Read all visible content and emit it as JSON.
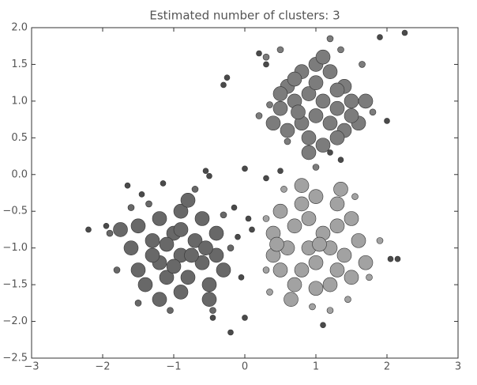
{
  "chart_data": {
    "type": "scatter",
    "title": "Estimated number of clusters: 3",
    "xlim": [
      -3,
      3
    ],
    "ylim": [
      -2.5,
      2.0
    ],
    "xticks": [
      {
        "value": -3,
        "label": "−3"
      },
      {
        "value": -2,
        "label": "−2"
      },
      {
        "value": -1,
        "label": "−1"
      },
      0,
      1,
      2,
      3
    ],
    "yticks": [
      {
        "value": -2.5,
        "label": "−2.5"
      },
      {
        "value": -2.0,
        "label": "−2.0"
      },
      {
        "value": -1.5,
        "label": "−1.5"
      },
      {
        "value": -1.0,
        "label": "−1.0"
      },
      {
        "value": -0.5,
        "label": "−0.5"
      },
      {
        "value": 0.0,
        "label": "0.0"
      },
      0.5,
      {
        "value": 1.0,
        "label": "1.0"
      },
      1.5,
      {
        "value": 2.0,
        "label": "2.0"
      }
    ],
    "grid": false,
    "series": [
      {
        "color": "#7c7c7c",
        "marker_size": 9,
        "x": [
          0.6,
          0.8,
          1.0,
          1.2,
          1.4,
          0.5,
          0.7,
          0.9,
          1.1,
          1.3,
          1.5,
          1.7,
          0.6,
          0.8,
          1.0,
          1.2,
          1.4,
          1.6,
          0.9,
          1.1,
          1.3,
          0.4,
          0.7,
          1.1,
          0.9,
          1.5,
          0.5,
          1.0,
          1.3,
          0.75
        ],
        "values": [
          1.2,
          1.4,
          1.5,
          1.4,
          1.2,
          0.9,
          1.0,
          1.1,
          1.0,
          0.9,
          1.0,
          1.0,
          0.6,
          0.7,
          0.8,
          0.7,
          0.6,
          0.7,
          0.5,
          0.4,
          0.5,
          0.7,
          1.3,
          1.6,
          0.3,
          0.8,
          1.1,
          1.25,
          1.15,
          0.85
        ]
      },
      {
        "color": "#7c7c7c",
        "marker_size": 4,
        "x": [
          0.3,
          0.5,
          1.2,
          1.65,
          1.8,
          0.2,
          1.0,
          0.6,
          1.35,
          0.35
        ],
        "values": [
          1.6,
          1.7,
          1.85,
          1.5,
          0.85,
          0.8,
          0.1,
          0.45,
          1.7,
          0.95
        ]
      },
      {
        "color": "#a2a2a2",
        "marker_size": 9,
        "x": [
          0.5,
          0.8,
          1.0,
          1.3,
          1.5,
          0.4,
          0.7,
          0.9,
          1.1,
          1.3,
          1.6,
          0.4,
          0.6,
          0.9,
          1.2,
          1.4,
          1.7,
          0.5,
          0.8,
          1.0,
          1.3,
          1.5,
          0.7,
          1.0,
          1.2,
          0.45,
          1.05,
          0.8,
          1.35,
          0.65
        ],
        "values": [
          -0.5,
          -0.4,
          -0.3,
          -0.4,
          -0.6,
          -0.8,
          -0.7,
          -0.6,
          -0.8,
          -0.7,
          -0.9,
          -1.1,
          -1.0,
          -1.0,
          -1.0,
          -1.1,
          -1.2,
          -1.3,
          -1.3,
          -1.2,
          -1.3,
          -1.4,
          -1.5,
          -1.55,
          -1.5,
          -0.95,
          -0.95,
          -0.15,
          -0.2,
          -1.7
        ]
      },
      {
        "color": "#a2a2a2",
        "marker_size": 4,
        "x": [
          0.3,
          1.55,
          1.9,
          0.35,
          0.95,
          1.45,
          1.75,
          0.55,
          1.2,
          0.3
        ],
        "values": [
          -0.6,
          -0.3,
          -0.9,
          -1.6,
          -1.8,
          -1.7,
          -1.4,
          -0.2,
          -1.85,
          -1.3
        ]
      },
      {
        "color": "#686868",
        "marker_size": 9,
        "x": [
          -1.5,
          -1.2,
          -0.9,
          -0.6,
          -0.4,
          -1.6,
          -1.3,
          -1.0,
          -0.7,
          -0.4,
          -1.5,
          -1.2,
          -0.9,
          -0.6,
          -0.3,
          -1.4,
          -1.1,
          -0.8,
          -0.5,
          -1.2,
          -0.9,
          -0.5,
          -1.75,
          -0.8,
          -1.0,
          -1.3,
          -0.75,
          -0.55,
          -1.1,
          -0.9
        ],
        "values": [
          -0.7,
          -0.6,
          -0.5,
          -0.6,
          -0.8,
          -1.0,
          -0.9,
          -0.8,
          -0.9,
          -1.1,
          -1.3,
          -1.2,
          -1.1,
          -1.2,
          -1.3,
          -1.5,
          -1.4,
          -1.4,
          -1.5,
          -1.7,
          -1.6,
          -1.7,
          -0.75,
          -0.35,
          -1.25,
          -1.1,
          -1.1,
          -1.0,
          -0.95,
          -0.75
        ]
      },
      {
        "color": "#686868",
        "marker_size": 4,
        "x": [
          -1.9,
          -1.8,
          -1.5,
          -1.05,
          -0.45,
          -0.2,
          -0.3,
          -1.35,
          -0.7,
          -1.6
        ],
        "values": [
          -0.8,
          -1.3,
          -1.75,
          -1.85,
          -1.85,
          -1.0,
          -0.55,
          -0.4,
          -0.2,
          -0.45
        ]
      },
      {
        "color": "#4a4a4a",
        "marker_size": 3.5,
        "x": [
          -2.2,
          -1.95,
          -1.65,
          -1.45,
          -1.15,
          -0.55,
          -0.5,
          0.0,
          -0.25,
          -0.3,
          0.2,
          0.3,
          2.25,
          1.9,
          2.0,
          -0.15,
          0.05,
          -0.05,
          -0.2,
          0.0,
          -0.45,
          1.1,
          2.05,
          2.15,
          0.1,
          0.3,
          -0.1,
          1.35,
          0.5,
          1.2
        ],
        "values": [
          -0.75,
          -0.7,
          -0.15,
          -0.27,
          -0.12,
          0.05,
          -0.02,
          0.08,
          1.32,
          1.22,
          1.65,
          1.5,
          1.93,
          1.87,
          0.73,
          -0.45,
          -0.6,
          -1.4,
          -2.15,
          -1.95,
          -1.95,
          -2.05,
          -1.15,
          -1.15,
          -0.75,
          -0.05,
          -0.85,
          0.2,
          0.05,
          0.3
        ]
      }
    ]
  }
}
